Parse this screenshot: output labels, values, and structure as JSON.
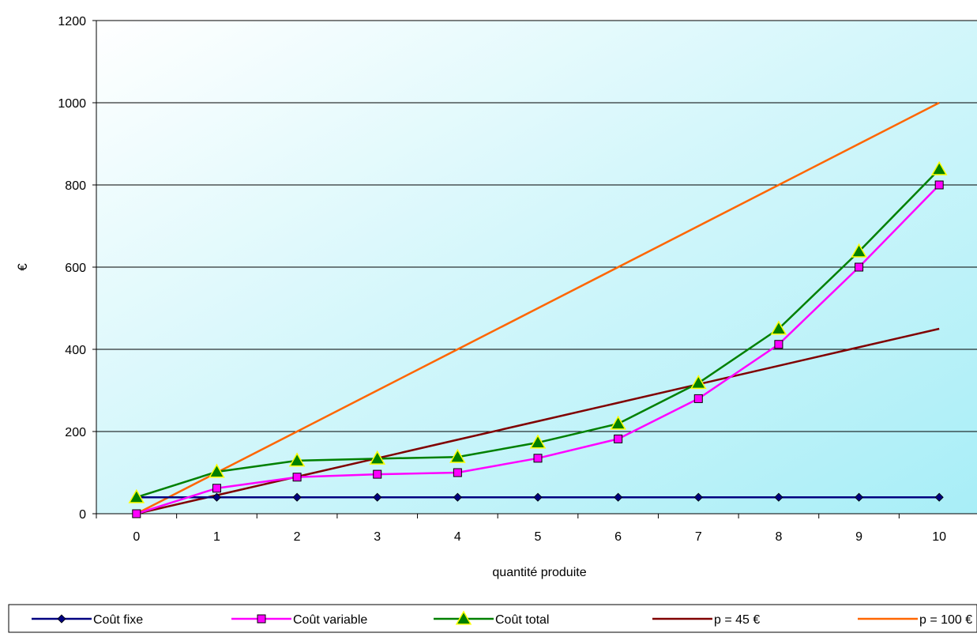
{
  "chart_data": {
    "type": "line",
    "title": "",
    "xlabel": "quantité produite",
    "ylabel": "€",
    "x": [
      0,
      1,
      2,
      3,
      4,
      5,
      6,
      7,
      8,
      9,
      10
    ],
    "ylim": [
      0,
      1200
    ],
    "yticks": [
      0,
      200,
      400,
      600,
      800,
      1000,
      1200
    ],
    "grid": true,
    "legend_position": "bottom",
    "series": [
      {
        "name": "Coût fixe",
        "color": "#000080",
        "marker": "diamond",
        "values": [
          40,
          40,
          40,
          40,
          40,
          40,
          40,
          40,
          40,
          40,
          40
        ]
      },
      {
        "name": "Coût variable",
        "color": "#ff00ff",
        "marker": "square",
        "values": [
          0,
          62,
          89,
          96,
          100,
          135,
          182,
          280,
          412,
          600,
          800
        ]
      },
      {
        "name": "Coût total",
        "color": "#008000",
        "marker": "triangle",
        "values": [
          40,
          102,
          129,
          134,
          138,
          173,
          219,
          318,
          450,
          638,
          838
        ]
      },
      {
        "name": "p = 45 €",
        "color": "#800000",
        "marker": "none",
        "values": [
          0,
          45,
          90,
          135,
          180,
          225,
          270,
          315,
          360,
          405,
          450
        ]
      },
      {
        "name": "p = 100 €",
        "color": "#ff6600",
        "marker": "none",
        "values": [
          0,
          100,
          200,
          300,
          400,
          500,
          600,
          700,
          800,
          900,
          1000
        ]
      }
    ]
  }
}
